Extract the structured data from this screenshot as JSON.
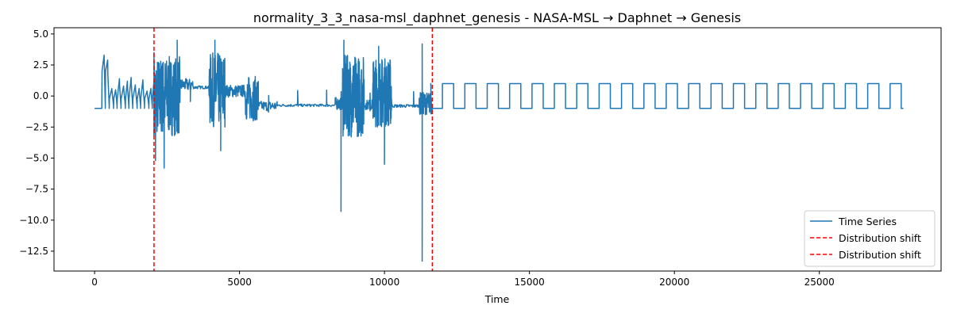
{
  "chart_data": {
    "type": "line",
    "title": "normality_3_3_nasa-msl_daphnet_genesis - NASA-MSL → Daphnet → Genesis",
    "xlabel": "Time",
    "ylabel": "",
    "xlim": [
      -1400,
      29200
    ],
    "ylim": [
      -14.1,
      5.5
    ],
    "x_ticks": [
      0,
      5000,
      10000,
      15000,
      20000,
      25000
    ],
    "x_tick_labels": [
      "0",
      "5000",
      "10000",
      "15000",
      "20000",
      "25000"
    ],
    "y_ticks": [
      5.0,
      2.5,
      0.0,
      -2.5,
      -5.0,
      -7.5,
      -10.0,
      -12.5
    ],
    "y_tick_labels": [
      "5.0",
      "2.5",
      "0.0",
      "−2.5",
      "−5.0",
      "−7.5",
      "−10.0",
      "−12.5"
    ],
    "grid": false,
    "legend_position": "lower-right",
    "colors": {
      "series": "#1f77b4",
      "shift": "#ff0000"
    },
    "series": [
      {
        "name": "Time Series",
        "segments": [
          {
            "label": "NASA-MSL",
            "x_range": [
              0,
              2050
            ],
            "pattern": "sawtooth ramps from -1 up to about 1.5, spikes near 3.2 around x=300",
            "y_min": -1.0,
            "y_max": 3.3
          },
          {
            "label": "Daphnet",
            "x_range": [
              2050,
              11650
            ],
            "pattern": "noisy bursts alternating with flat plateaus",
            "y_min": -13.3,
            "y_max": 4.6,
            "key_points": [
              {
                "x": 2050,
                "y": 3.5
              },
              {
                "x": 2100,
                "y": -5.2
              },
              {
                "x": 2400,
                "y": -5.8
              },
              {
                "x": 2850,
                "y": 4.5
              },
              {
                "x": 3300,
                "y": 0.7
              },
              {
                "x": 4000,
                "y": 0.7
              },
              {
                "x": 4150,
                "y": 4.5
              },
              {
                "x": 4350,
                "y": -4.4
              },
              {
                "x": 5600,
                "y": -1.9
              },
              {
                "x": 6000,
                "y": -1.3
              },
              {
                "x": 7000,
                "y": -0.7
              },
              {
                "x": 8000,
                "y": -0.7
              },
              {
                "x": 8500,
                "y": -9.3
              },
              {
                "x": 8600,
                "y": 4.5
              },
              {
                "x": 9500,
                "y": -1.2
              },
              {
                "x": 9800,
                "y": 4.0
              },
              {
                "x": 10000,
                "y": -5.5
              },
              {
                "x": 10200,
                "y": -0.8
              },
              {
                "x": 11000,
                "y": -0.8
              },
              {
                "x": 11300,
                "y": -13.3
              },
              {
                "x": 11300,
                "y": 4.2
              },
              {
                "x": 11600,
                "y": 1.0
              }
            ]
          },
          {
            "label": "Genesis",
            "x_range": [
              11650,
              27900
            ],
            "pattern": "square wave between -1 and 1",
            "low": -1.0,
            "high": 1.0,
            "period": 386,
            "first_rise": 12000
          }
        ]
      }
    ],
    "vlines": [
      {
        "name": "Distribution shift",
        "x": 2050,
        "style": "dashed"
      },
      {
        "name": "Distribution shift",
        "x": 11650,
        "style": "dashed"
      }
    ],
    "legend": [
      "Time Series",
      "Distribution shift",
      "Distribution shift"
    ]
  }
}
